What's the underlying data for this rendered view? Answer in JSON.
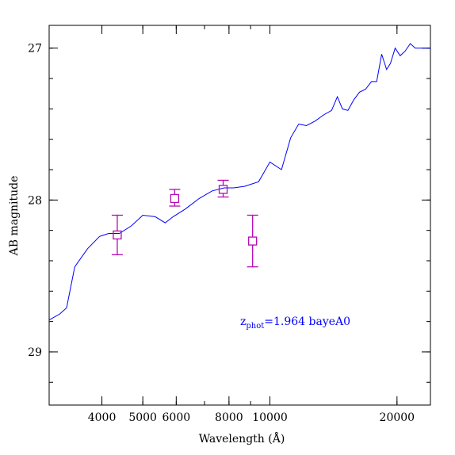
{
  "chart_data": {
    "type": "line",
    "xlabel": "Wavelength (Å)",
    "ylabel": "AB magnitude",
    "x_scale": "log",
    "xlim": [
      3000,
      24000
    ],
    "ylim": [
      29.35,
      26.85
    ],
    "y_inverted": true,
    "x_ticks": [
      {
        "value": 4000,
        "label": "4000"
      },
      {
        "value": 5000,
        "label": "5000"
      },
      {
        "value": 6000,
        "label": "6000"
      },
      {
        "value": 8000,
        "label": "8000"
      },
      {
        "value": 10000,
        "label": "10000"
      },
      {
        "value": 20000,
        "label": "20000"
      }
    ],
    "y_ticks": [
      {
        "value": 27,
        "label": "27"
      },
      {
        "value": 28,
        "label": "28"
      },
      {
        "value": 29,
        "label": "29"
      }
    ],
    "grid": false,
    "annotation": {
      "prefix": "z",
      "subscript": "phot",
      "suffix": "=1.964 bayeA0",
      "color": "#0000ff"
    },
    "series": [
      {
        "kind": "line",
        "color": "#0000ff",
        "x": [
          3000,
          3180,
          3300,
          3450,
          3700,
          3950,
          4150,
          4400,
          4700,
          5000,
          5350,
          5650,
          5900,
          6300,
          6800,
          7300,
          7800,
          8200,
          8700,
          9400,
          10000,
          10650,
          11200,
          11700,
          12200,
          12800,
          13400,
          14000,
          14450,
          14850,
          15300,
          15800,
          16300,
          16850,
          17400,
          17900,
          18400,
          18900,
          19300,
          19800,
          20350,
          20900,
          21500,
          22100,
          22900,
          23500,
          24000
        ],
        "y": [
          28.79,
          28.75,
          28.71,
          28.44,
          28.32,
          28.24,
          28.22,
          28.22,
          28.17,
          28.1,
          28.11,
          28.15,
          28.11,
          28.06,
          27.99,
          27.94,
          27.92,
          27.92,
          27.91,
          27.88,
          27.75,
          27.8,
          27.59,
          27.5,
          27.51,
          27.48,
          27.44,
          27.41,
          27.32,
          27.4,
          27.41,
          27.34,
          27.29,
          27.27,
          27.22,
          27.22,
          27.04,
          27.14,
          27.1,
          27.0,
          27.05,
          27.02,
          26.97,
          27.0,
          27.0,
          27.0,
          27.0
        ]
      },
      {
        "kind": "points",
        "color": "#b40ab4",
        "marker": "open-square",
        "points": [
          {
            "x": 4350,
            "y": 28.23,
            "err_low": 28.36,
            "err_high": 28.1
          },
          {
            "x": 5950,
            "y": 27.99,
            "err_low": 28.04,
            "err_high": 27.93
          },
          {
            "x": 7750,
            "y": 27.93,
            "err_low": 27.98,
            "err_high": 27.87
          },
          {
            "x": 9100,
            "y": 28.27,
            "err_low": 28.44,
            "err_high": 28.1
          }
        ]
      }
    ]
  }
}
